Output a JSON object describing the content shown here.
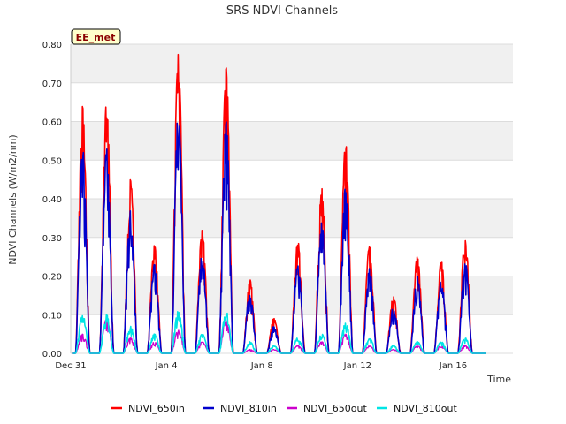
{
  "chart_data": {
    "type": "line",
    "title": "SRS NDVI Channels",
    "xlabel": "Time",
    "ylabel": "NDVI Channels (W/m2/nm)",
    "site_tag": "EE_met",
    "xlim": [
      0,
      18.5
    ],
    "ylim": [
      0,
      0.8
    ],
    "y_ticks": [
      0.0,
      0.1,
      0.2,
      0.3,
      0.4,
      0.5,
      0.6,
      0.7,
      0.8
    ],
    "y_tick_labels": [
      "0.00",
      "0.10",
      "0.20",
      "0.30",
      "0.40",
      "0.50",
      "0.60",
      "0.70",
      "0.80"
    ],
    "x_ticks": [
      0,
      4,
      8,
      12,
      16
    ],
    "x_tick_labels": [
      "Dec 31",
      "Jan 4",
      "Jan 8",
      "Jan 12",
      "Jan 16"
    ],
    "legend_position": "bottom",
    "series_meta": [
      {
        "name": "NDVI_650in",
        "color": "#ff0000"
      },
      {
        "name": "NDVI_810in",
        "color": "#0000cc"
      },
      {
        "name": "NDVI_650out",
        "color": "#cc00cc"
      },
      {
        "name": "NDVI_810out",
        "color": "#00e5e5"
      }
    ],
    "daily_peaks": {
      "day_offset": [
        0.5,
        1.5,
        2.5,
        3.5,
        4.5,
        5.5,
        6.5,
        7.5,
        8.5,
        9.5,
        10.5,
        11.5,
        12.5,
        13.5,
        14.5,
        15.5,
        16.5
      ],
      "NDVI_650in": [
        0.64,
        0.65,
        0.45,
        0.28,
        0.78,
        0.32,
        0.74,
        0.19,
        0.09,
        0.29,
        0.43,
        0.55,
        0.28,
        0.15,
        0.25,
        0.24,
        0.31
      ],
      "NDVI_810in": [
        0.53,
        0.53,
        0.37,
        0.23,
        0.63,
        0.26,
        0.6,
        0.16,
        0.07,
        0.23,
        0.34,
        0.44,
        0.22,
        0.12,
        0.2,
        0.19,
        0.24
      ],
      "NDVI_650out": [
        0.05,
        0.09,
        0.04,
        0.03,
        0.06,
        0.03,
        0.09,
        0.01,
        0.01,
        0.02,
        0.03,
        0.05,
        0.02,
        0.01,
        0.02,
        0.02,
        0.02
      ],
      "NDVI_810out": [
        0.1,
        0.1,
        0.07,
        0.05,
        0.11,
        0.05,
        0.11,
        0.03,
        0.02,
        0.04,
        0.05,
        0.08,
        0.04,
        0.02,
        0.03,
        0.03,
        0.04
      ]
    }
  }
}
